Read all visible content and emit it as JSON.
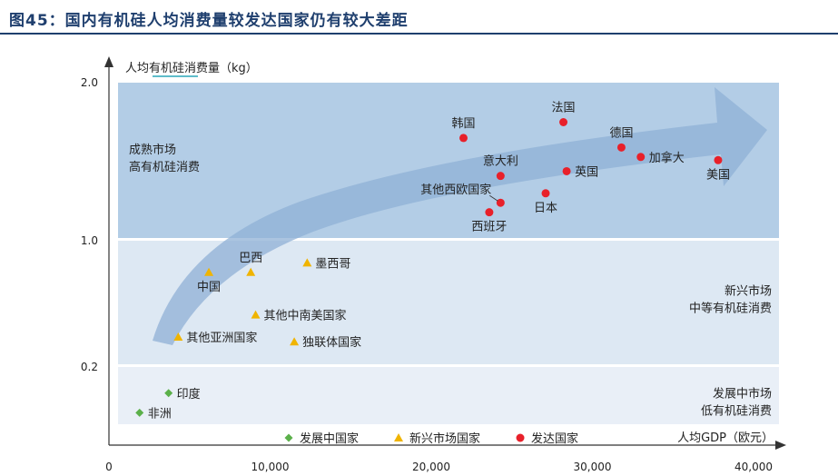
{
  "figure_title": "图45：国内有机硅人均消费量较发达国家仍有较大差距",
  "colors": {
    "band_mature": "#b3cde6",
    "band_emerging": "#dde8f3",
    "band_developing": "#e9eff7",
    "arrow": "#8fb0d6",
    "developing": "#5bb04a",
    "emerging": "#f0b400",
    "developed": "#e8202a",
    "axis": "#333333",
    "title": "#1f3f6e"
  },
  "chart_data": {
    "type": "scatter",
    "title": "",
    "xlabel": "人均GDP（欧元）",
    "ylabel": "人均有机硅消费量（kg）",
    "xlim": [
      0,
      40000
    ],
    "ylim": [
      -0.35,
      2.1
    ],
    "x_ticks": [
      0,
      10000,
      20000,
      30000,
      40000
    ],
    "x_tick_labels": [
      "0",
      "10,000",
      "20,000",
      "30,000",
      "40,000"
    ],
    "y_ticks": [
      0.2,
      1.0,
      2.0
    ],
    "y_tick_labels": [
      "0.2",
      "1.0",
      "2.0"
    ],
    "grid": false,
    "legend_position": "bottom",
    "bands": [
      {
        "from": 1.0,
        "to": 2.0,
        "label_lines": [
          "成熟市场",
          "高有机硅消费"
        ],
        "align": "left"
      },
      {
        "from": 0.2,
        "to": 1.0,
        "label_lines": [
          "新兴市场",
          "中等有机硅消费"
        ],
        "align": "right"
      },
      {
        "from": -0.15,
        "to": 0.2,
        "label_lines": [
          "发展中市场",
          "低有机硅消费"
        ],
        "align": "right"
      }
    ],
    "series": [
      {
        "name": "发展中国家",
        "marker": "diamond",
        "points": [
          {
            "label": "印度",
            "x": 3700,
            "y": 0.04,
            "label_side": "right"
          },
          {
            "label": "非洲",
            "x": 1900,
            "y": -0.08,
            "label_side": "right"
          }
        ]
      },
      {
        "name": "新兴市场国家",
        "marker": "triangle",
        "points": [
          {
            "label": "巴西",
            "x": 8800,
            "y": 0.8,
            "label_side": "above"
          },
          {
            "label": "中国",
            "x": 6200,
            "y": 0.8,
            "label_side": "below"
          },
          {
            "label": "墨西哥",
            "x": 12300,
            "y": 0.86,
            "label_side": "right"
          },
          {
            "label": "其他中南美国家",
            "x": 9100,
            "y": 0.53,
            "label_side": "right"
          },
          {
            "label": "其他亚洲国家",
            "x": 4300,
            "y": 0.39,
            "label_side": "right"
          },
          {
            "label": "独联体国家",
            "x": 11500,
            "y": 0.36,
            "label_side": "right"
          }
        ]
      },
      {
        "name": "发达国家",
        "marker": "circle",
        "points": [
          {
            "label": "法国",
            "x": 28200,
            "y": 1.75,
            "label_side": "above"
          },
          {
            "label": "韩国",
            "x": 22000,
            "y": 1.65,
            "label_side": "above"
          },
          {
            "label": "德国",
            "x": 31800,
            "y": 1.59,
            "label_side": "above"
          },
          {
            "label": "加拿大",
            "x": 33000,
            "y": 1.53,
            "label_side": "right"
          },
          {
            "label": "美国",
            "x": 37800,
            "y": 1.51,
            "label_side": "below"
          },
          {
            "label": "意大利",
            "x": 24300,
            "y": 1.41,
            "label_side": "above"
          },
          {
            "label": "英国",
            "x": 28400,
            "y": 1.44,
            "label_side": "right"
          },
          {
            "label": "日本",
            "x": 27100,
            "y": 1.3,
            "label_side": "below"
          },
          {
            "label": "其他西欧国家",
            "x": 24300,
            "y": 1.24,
            "label_side": "left"
          },
          {
            "label": "西班牙",
            "x": 23600,
            "y": 1.18,
            "label_side": "below"
          }
        ]
      }
    ]
  }
}
